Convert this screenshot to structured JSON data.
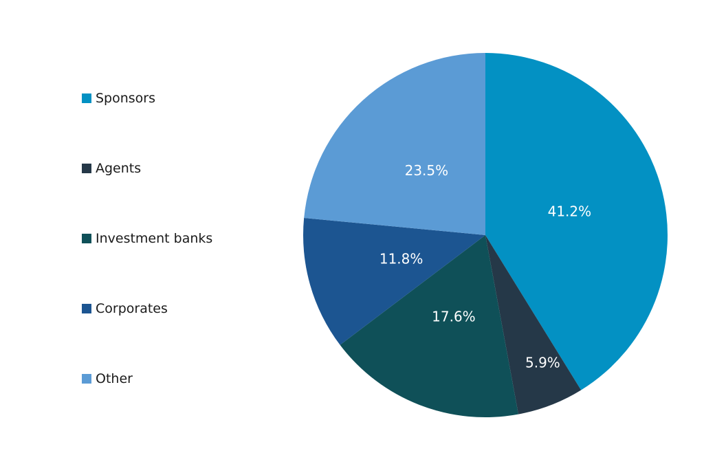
{
  "chart_data": {
    "type": "pie",
    "categories": [
      "Sponsors",
      "Agents",
      "Investment banks",
      "Corporates",
      "Other"
    ],
    "values": [
      41.2,
      5.9,
      17.6,
      11.8,
      23.5
    ],
    "data_labels": [
      "41.2%",
      "5.9%",
      "17.6%",
      "11.8%",
      "23.5%"
    ],
    "colors": [
      "#0391c3",
      "#253848",
      "#0f5058",
      "#1c5591",
      "#5b9bd5"
    ],
    "start": "12 o'clock",
    "direction": "clockwise",
    "legend_position": "left",
    "title": "",
    "xlabel": "",
    "ylabel": ""
  }
}
